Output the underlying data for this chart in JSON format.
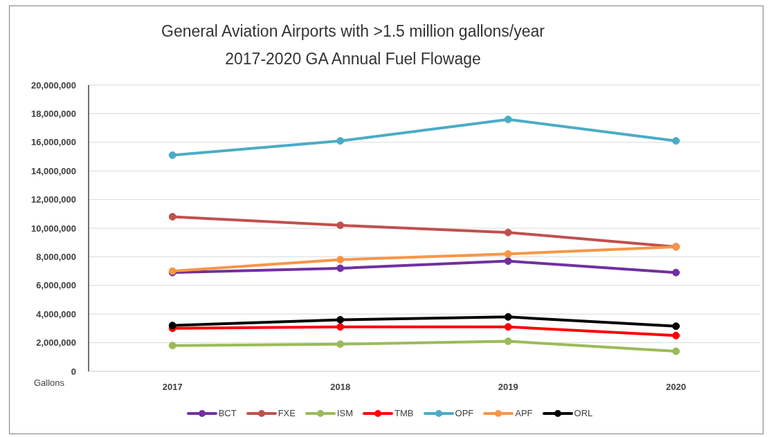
{
  "chart_data": {
    "type": "line",
    "title": "General Aviation Airports with >1.5 million gallons/year",
    "subtitle": "2017-2020 GA Annual Fuel Flowage",
    "ylabel": "Gallons",
    "categories": [
      "2017",
      "2018",
      "2019",
      "2020"
    ],
    "series": [
      {
        "name": "BCT",
        "color": "#7030a0",
        "values": [
          6900000,
          7200000,
          7700000,
          6900000
        ]
      },
      {
        "name": "FXE",
        "color": "#c0504d",
        "values": [
          10800000,
          10200000,
          9700000,
          8700000
        ]
      },
      {
        "name": "ISM",
        "color": "#9bbb59",
        "values": [
          1800000,
          1900000,
          2100000,
          1400000
        ]
      },
      {
        "name": "TMB",
        "color": "#ff0000",
        "values": [
          3000000,
          3100000,
          3100000,
          2500000
        ]
      },
      {
        "name": "OPF",
        "color": "#4bacc6",
        "values": [
          15100000,
          16100000,
          17600000,
          16100000
        ]
      },
      {
        "name": "APF",
        "color": "#f79646",
        "values": [
          7000000,
          7800000,
          8200000,
          8700000
        ]
      },
      {
        "name": "ORL",
        "color": "#000000",
        "values": [
          3200000,
          3600000,
          3800000,
          3150000
        ]
      }
    ],
    "ylim": [
      0,
      20000000
    ],
    "yticks": [
      0,
      {
        "value": 2000000,
        "label": "2,000,000"
      },
      {
        "value": 4000000,
        "label": "4,000,000"
      },
      {
        "value": 6000000,
        "label": "6,000,000"
      },
      {
        "value": 8000000,
        "label": "8,000,000"
      },
      {
        "value": 10000000,
        "label": "10,000,000"
      },
      {
        "value": 12000000,
        "label": "12,000,000"
      },
      {
        "value": 14000000,
        "label": "14,000,000"
      },
      {
        "value": 16000000,
        "label": "16,000,000"
      },
      {
        "value": 18000000,
        "label": "18,000,000"
      },
      {
        "value": 20000000,
        "label": "20,000,000"
      }
    ],
    "grid": "y",
    "legend": "bottom",
    "marker": "circle",
    "line_style": "solid"
  }
}
